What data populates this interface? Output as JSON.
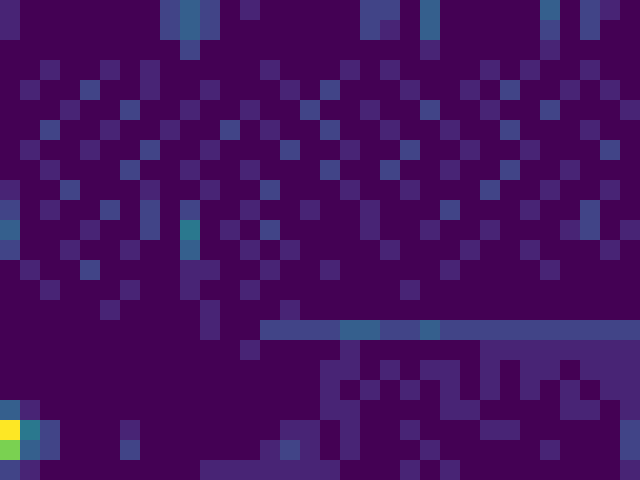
{
  "chart_data": {
    "type": "heatmap",
    "tick_labels": false,
    "color_range": [
      0,
      10
    ],
    "z": [
      [
        1,
        0,
        0,
        0,
        0,
        0,
        0,
        0,
        2,
        3,
        2,
        0,
        1,
        0,
        0,
        0,
        0,
        0,
        2,
        2,
        0,
        3,
        0,
        0,
        0,
        0,
        0,
        3,
        0,
        2,
        1,
        0
      ],
      [
        1,
        0,
        0,
        0,
        0,
        0,
        0,
        0,
        2,
        3,
        2,
        0,
        0,
        0,
        0,
        0,
        0,
        0,
        2,
        1,
        0,
        3,
        0,
        0,
        0,
        0,
        0,
        2,
        0,
        2,
        0,
        0
      ],
      [
        0,
        0,
        0,
        0,
        0,
        0,
        0,
        0,
        0,
        2,
        0,
        0,
        0,
        0,
        0,
        0,
        0,
        0,
        0,
        0,
        0,
        1,
        0,
        0,
        0,
        0,
        0,
        1,
        0,
        0,
        0,
        0
      ],
      [
        0,
        0,
        1,
        0,
        0,
        1,
        0,
        1,
        0,
        0,
        0,
        0,
        0,
        1,
        0,
        0,
        0,
        1,
        0,
        1,
        0,
        0,
        0,
        0,
        1,
        0,
        1,
        0,
        0,
        1,
        0,
        0
      ],
      [
        0,
        1,
        0,
        0,
        2,
        0,
        0,
        1,
        0,
        0,
        1,
        0,
        0,
        0,
        1,
        0,
        2,
        0,
        0,
        0,
        1,
        0,
        0,
        1,
        0,
        2,
        0,
        0,
        1,
        0,
        1,
        0
      ],
      [
        0,
        0,
        0,
        1,
        0,
        0,
        2,
        0,
        0,
        1,
        0,
        0,
        1,
        0,
        0,
        2,
        0,
        0,
        1,
        0,
        0,
        2,
        0,
        0,
        1,
        0,
        0,
        2,
        0,
        0,
        0,
        1
      ],
      [
        0,
        0,
        2,
        0,
        0,
        1,
        0,
        0,
        1,
        0,
        0,
        2,
        0,
        1,
        0,
        0,
        2,
        0,
        0,
        1,
        0,
        0,
        1,
        0,
        0,
        2,
        0,
        0,
        0,
        1,
        0,
        0
      ],
      [
        0,
        1,
        0,
        0,
        1,
        0,
        0,
        2,
        0,
        0,
        1,
        0,
        0,
        0,
        2,
        0,
        0,
        1,
        0,
        0,
        2,
        0,
        0,
        1,
        0,
        0,
        1,
        0,
        0,
        0,
        2,
        0
      ],
      [
        0,
        0,
        1,
        0,
        0,
        0,
        2,
        0,
        0,
        1,
        0,
        0,
        1,
        0,
        0,
        0,
        2,
        0,
        0,
        2,
        0,
        0,
        1,
        0,
        0,
        2,
        0,
        0,
        1,
        0,
        0,
        0
      ],
      [
        1,
        0,
        0,
        2,
        0,
        0,
        0,
        1,
        0,
        0,
        1,
        0,
        0,
        2,
        0,
        0,
        0,
        1,
        0,
        0,
        1,
        0,
        0,
        0,
        2,
        0,
        0,
        1,
        0,
        0,
        1,
        0
      ],
      [
        2,
        0,
        1,
        0,
        0,
        2,
        0,
        2,
        0,
        2,
        0,
        0,
        1,
        0,
        0,
        1,
        0,
        0,
        1,
        0,
        0,
        0,
        2,
        0,
        0,
        0,
        1,
        0,
        0,
        2,
        0,
        0
      ],
      [
        3,
        0,
        0,
        0,
        1,
        0,
        0,
        2,
        0,
        4,
        0,
        1,
        0,
        2,
        0,
        0,
        0,
        0,
        1,
        0,
        0,
        1,
        0,
        0,
        1,
        0,
        0,
        0,
        1,
        2,
        0,
        1
      ],
      [
        2,
        0,
        0,
        1,
        0,
        0,
        1,
        0,
        0,
        3,
        0,
        0,
        1,
        0,
        1,
        0,
        0,
        0,
        0,
        1,
        0,
        0,
        0,
        1,
        0,
        0,
        1,
        0,
        0,
        0,
        1,
        0
      ],
      [
        0,
        1,
        0,
        0,
        2,
        0,
        0,
        0,
        0,
        1,
        1,
        0,
        0,
        1,
        0,
        0,
        1,
        0,
        0,
        0,
        0,
        0,
        1,
        0,
        0,
        0,
        0,
        1,
        0,
        0,
        0,
        0
      ],
      [
        0,
        0,
        1,
        0,
        0,
        0,
        1,
        0,
        0,
        1,
        0,
        0,
        1,
        0,
        0,
        0,
        0,
        0,
        0,
        0,
        1,
        0,
        0,
        0,
        0,
        0,
        0,
        0,
        0,
        0,
        0,
        0
      ],
      [
        0,
        0,
        0,
        0,
        0,
        1,
        0,
        0,
        0,
        0,
        1,
        0,
        0,
        0,
        1,
        0,
        0,
        0,
        0,
        0,
        0,
        0,
        0,
        0,
        0,
        0,
        0,
        0,
        0,
        0,
        0,
        0
      ],
      [
        0,
        0,
        0,
        0,
        0,
        0,
        0,
        0,
        0,
        0,
        1,
        0,
        0,
        2,
        2,
        2,
        2,
        3,
        3,
        2,
        2,
        3,
        2,
        2,
        2,
        2,
        2,
        2,
        2,
        2,
        2,
        2
      ],
      [
        0,
        0,
        0,
        0,
        0,
        0,
        0,
        0,
        0,
        0,
        0,
        0,
        1,
        0,
        0,
        0,
        0,
        1,
        0,
        0,
        0,
        0,
        0,
        0,
        1,
        1,
        1,
        1,
        1,
        1,
        1,
        1
      ],
      [
        0,
        0,
        0,
        0,
        0,
        0,
        0,
        0,
        0,
        0,
        0,
        0,
        0,
        0,
        0,
        0,
        1,
        1,
        0,
        1,
        0,
        1,
        1,
        0,
        1,
        0,
        1,
        1,
        0,
        1,
        1,
        1
      ],
      [
        0,
        0,
        0,
        0,
        0,
        0,
        0,
        0,
        0,
        0,
        0,
        0,
        0,
        0,
        0,
        0,
        1,
        0,
        1,
        0,
        1,
        0,
        1,
        0,
        1,
        0,
        1,
        0,
        1,
        0,
        1,
        1
      ],
      [
        3,
        1,
        0,
        0,
        0,
        0,
        0,
        0,
        0,
        0,
        0,
        0,
        0,
        0,
        0,
        0,
        1,
        1,
        0,
        0,
        0,
        0,
        1,
        1,
        0,
        0,
        0,
        0,
        1,
        1,
        0,
        1
      ],
      [
        10,
        4,
        2,
        0,
        0,
        0,
        1,
        0,
        0,
        0,
        0,
        0,
        0,
        0,
        1,
        1,
        0,
        1,
        0,
        0,
        1,
        0,
        0,
        0,
        1,
        1,
        0,
        0,
        0,
        0,
        0,
        2
      ],
      [
        8,
        3,
        2,
        0,
        0,
        0,
        2,
        0,
        0,
        0,
        0,
        0,
        0,
        1,
        2,
        1,
        0,
        1,
        0,
        0,
        0,
        1,
        0,
        0,
        0,
        0,
        0,
        1,
        0,
        0,
        0,
        2
      ],
      [
        2,
        1,
        0,
        0,
        0,
        0,
        0,
        0,
        0,
        0,
        1,
        1,
        1,
        1,
        1,
        1,
        1,
        0,
        0,
        0,
        1,
        0,
        1,
        0,
        0,
        0,
        0,
        0,
        0,
        0,
        0,
        1
      ]
    ]
  }
}
